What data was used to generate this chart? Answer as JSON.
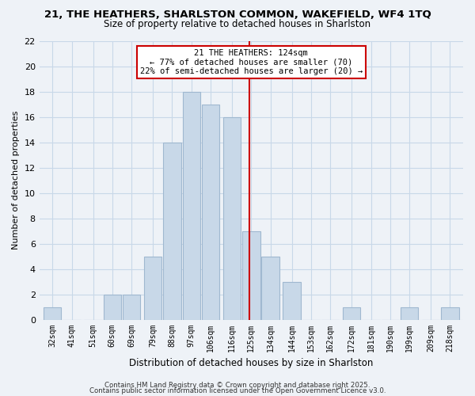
{
  "title": "21, THE HEATHERS, SHARLSTON COMMON, WAKEFIELD, WF4 1TQ",
  "subtitle": "Size of property relative to detached houses in Sharlston",
  "xlabel": "Distribution of detached houses by size in Sharlston",
  "ylabel": "Number of detached properties",
  "bar_color": "#c8d8e8",
  "bar_edge_color": "#a0b8d0",
  "grid_color": "#c8d8e8",
  "vline_x": 124,
  "vline_color": "#cc0000",
  "annotation_title": "21 THE HEATHERS: 124sqm",
  "annotation_line1": "← 77% of detached houses are smaller (70)",
  "annotation_line2": "22% of semi-detached houses are larger (20) →",
  "annotation_box_edge": "#cc0000",
  "annotation_box_face": "#ffffff",
  "bin_centers": [
    32,
    41,
    51,
    60,
    69,
    79,
    88,
    97,
    106,
    116,
    125,
    134,
    144,
    153,
    162,
    172,
    181,
    190,
    199,
    209,
    218
  ],
  "bin_labels": [
    "32sqm",
    "41sqm",
    "51sqm",
    "60sqm",
    "69sqm",
    "79sqm",
    "88sqm",
    "97sqm",
    "106sqm",
    "116sqm",
    "125sqm",
    "134sqm",
    "144sqm",
    "153sqm",
    "162sqm",
    "172sqm",
    "181sqm",
    "190sqm",
    "199sqm",
    "209sqm",
    "218sqm"
  ],
  "counts": [
    1,
    0,
    0,
    2,
    2,
    5,
    14,
    18,
    17,
    16,
    7,
    5,
    3,
    0,
    0,
    1,
    0,
    0,
    1,
    0,
    1
  ],
  "ylim": [
    0,
    22
  ],
  "yticks": [
    0,
    2,
    4,
    6,
    8,
    10,
    12,
    14,
    16,
    18,
    20,
    22
  ],
  "footer1": "Contains HM Land Registry data © Crown copyright and database right 2025.",
  "footer2": "Contains public sector information licensed under the Open Government Licence v3.0.",
  "bg_color": "#eef2f7"
}
